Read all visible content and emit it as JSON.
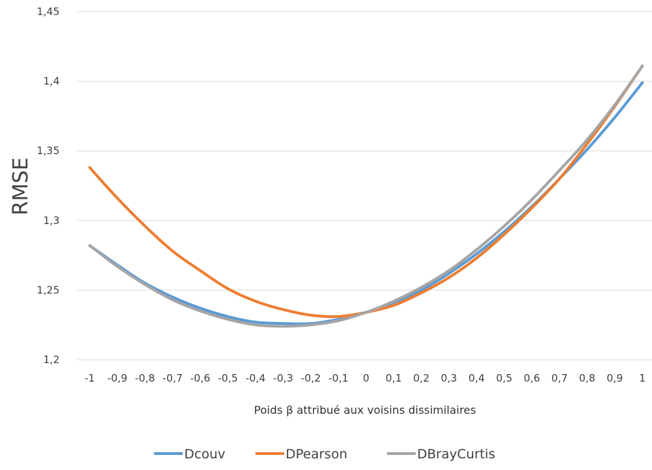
{
  "chart_data": {
    "type": "line",
    "xlabel": "Poids β attribué aux voisins dissimilaires",
    "ylabel": "RMSE",
    "ylim": [
      1.2,
      1.45
    ],
    "yticks": [
      "1,2",
      "1,25",
      "1,3",
      "1,35",
      "1,4",
      "1,45"
    ],
    "yticks_values": [
      1.2,
      1.25,
      1.3,
      1.35,
      1.4,
      1.45
    ],
    "categories": [
      "-1",
      "-0,9",
      "-0,8",
      "-0,7",
      "-0,6",
      "-0,5",
      "-0,4",
      "-0,3",
      "-0,2",
      "-0,1",
      "0",
      "0,1",
      "0,2",
      "0,3",
      "0,4",
      "0,5",
      "0,6",
      "0,7",
      "0,8",
      "0,9",
      "1"
    ],
    "grid": true,
    "legend_position": "bottom",
    "series": [
      {
        "name": "Dcouv",
        "color": "#5b9bd5",
        "values": [
          1.282,
          1.268,
          1.255,
          1.245,
          1.237,
          1.231,
          1.227,
          1.226,
          1.226,
          1.229,
          1.234,
          1.241,
          1.25,
          1.262,
          1.276,
          1.292,
          1.31,
          1.33,
          1.351,
          1.374,
          1.399
        ]
      },
      {
        "name": "DPearson",
        "color": "#ed7d31",
        "values": [
          1.338,
          1.316,
          1.296,
          1.278,
          1.264,
          1.251,
          1.242,
          1.236,
          1.232,
          1.231,
          1.234,
          1.239,
          1.248,
          1.259,
          1.273,
          1.29,
          1.309,
          1.33,
          1.355,
          1.382,
          1.411
        ]
      },
      {
        "name": "DBrayCurtis",
        "color": "#a5a5a5",
        "values": [
          1.282,
          1.267,
          1.254,
          1.243,
          1.235,
          1.229,
          1.225,
          1.224,
          1.225,
          1.228,
          1.234,
          1.242,
          1.252,
          1.264,
          1.279,
          1.296,
          1.315,
          1.336,
          1.358,
          1.383,
          1.411
        ]
      }
    ]
  }
}
